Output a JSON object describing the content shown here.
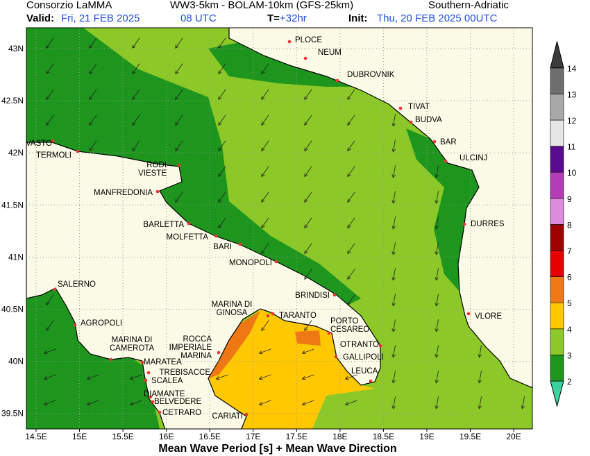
{
  "header": {
    "org": "Consorzio LaMMA",
    "model": "WW3-5km - BOLAM-10km (GFS-25km)",
    "region": "Southern-Adriatic",
    "valid_label": "Valid:",
    "valid_date": "Fri, 21 FEB 2025",
    "valid_time": "08 UTC",
    "step_label": "T=",
    "step": "+32hr",
    "init_label": "Init:",
    "init": "Thu, 20 FEB 2025 00UTC"
  },
  "map": {
    "lon_ticks": [
      "14.5E",
      "15E",
      "15.5E",
      "16E",
      "16.5E",
      "17E",
      "17.5E",
      "18E",
      "18.5E",
      "19E",
      "19.5E",
      "20E"
    ],
    "lat_ticks": [
      "43N",
      "42.5N",
      "42N",
      "41.5N",
      "41N",
      "40.5N",
      "40N",
      "39.5N"
    ],
    "cities": [
      [
        "PLOCE"
      ],
      [
        "NEUM"
      ],
      [
        "DUBROVNIK"
      ],
      [
        "TIVAT"
      ],
      [
        "BUDVA"
      ],
      [
        "BAR"
      ],
      [
        "ULCINJ"
      ],
      [
        "DURRES"
      ],
      [
        "VLORE"
      ],
      [
        "VASTO"
      ],
      [
        "TERMOLI"
      ],
      [
        "RODI",
        "VIESTE"
      ],
      [
        "MANFREDONIA"
      ],
      [
        "BARLETTA"
      ],
      [
        "MOLFETTA"
      ],
      [
        "BARI"
      ],
      [
        "MONOPOLI"
      ],
      [
        "BRINDISI"
      ],
      [
        "MARINA DI",
        "GINOSA"
      ],
      [
        "TARANTO"
      ],
      [
        "PORTO",
        "CESAREO"
      ],
      [
        "OTRANTO"
      ],
      [
        "GALLIPOLI"
      ],
      [
        "LEUCA"
      ],
      [
        "SALERNO"
      ],
      [
        "AGROPOLI"
      ],
      [
        "MARINA DI",
        "CAMEROTA"
      ],
      [
        "MARATEA"
      ],
      [
        "ROCCA",
        "IMPERIALE",
        "MARINA"
      ],
      [
        "TREBISACCE"
      ],
      [
        "SCALEA"
      ],
      [
        "DIAMANTE"
      ],
      [
        "BELVEDERE"
      ],
      [
        "CETRARO"
      ],
      [
        "CARIATI"
      ]
    ]
  },
  "colorbar": {
    "levels": [
      2,
      3,
      4,
      5,
      6,
      7,
      8,
      9,
      10,
      11,
      12,
      13,
      14
    ],
    "colors": [
      "#3cd2a0",
      "#1e961e",
      "#8cc828",
      "#ffc800",
      "#f07814",
      "#e60000",
      "#a00000",
      "#dc8cdc",
      "#b43cb4",
      "#5a0a8c",
      "#e6e6e6",
      "#a8a8a8",
      "#6e6e6e",
      "#3c3c3c"
    ]
  },
  "footer": "Mean Wave Period [s] + Mean Wave Direction"
}
